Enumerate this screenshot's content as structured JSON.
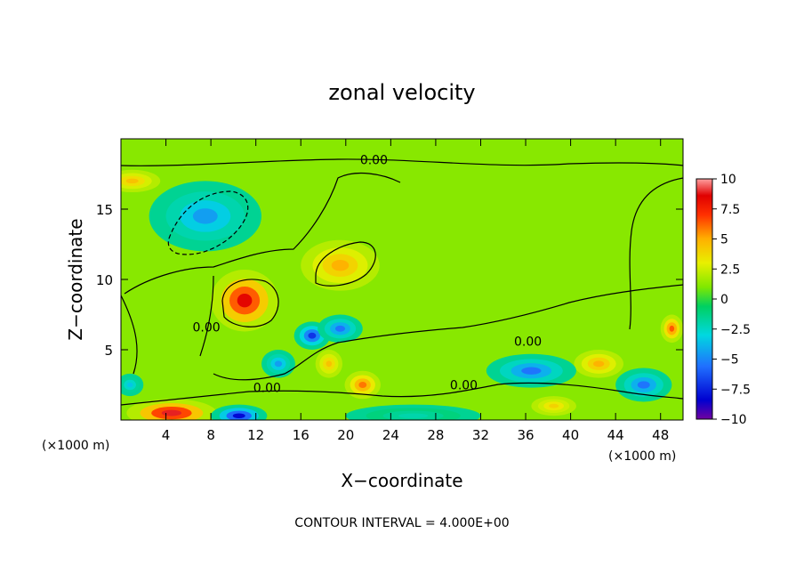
{
  "chart_data": {
    "type": "heatmap",
    "title": "zonal velocity",
    "xlabel": "X−coordinate",
    "ylabel": "Z−coordinate",
    "x_unit_left": "(×1000 m)",
    "x_unit_right": "(×1000 m)",
    "xlim": [
      0,
      50
    ],
    "ylim": [
      0,
      20
    ],
    "xticks": [
      "4",
      "8",
      "12",
      "16",
      "20",
      "24",
      "28",
      "32",
      "36",
      "40",
      "44",
      "48"
    ],
    "xtick_values": [
      4,
      8,
      12,
      16,
      20,
      24,
      28,
      32,
      36,
      40,
      44,
      48
    ],
    "yticks": [
      "5",
      "10",
      "15"
    ],
    "ytick_values": [
      5,
      10,
      15
    ],
    "colorbar": {
      "range": [
        -10,
        10
      ],
      "tick_labels": [
        "10",
        "7.5",
        "5",
        "2.5",
        "0",
        "−2.5",
        "−5",
        "−7.5",
        "−10"
      ],
      "tick_values": [
        10,
        7.5,
        5,
        2.5,
        0,
        -2.5,
        -5,
        -7.5,
        -10
      ]
    },
    "contour_interval_text": "CONTOUR INTERVAL =  4.000E+00",
    "contour_labels": [
      {
        "text": "0.00",
        "x": 22.5,
        "y": 18.5
      },
      {
        "text": "0.00",
        "x": 7.6,
        "y": 6.6
      },
      {
        "text": "0.00",
        "x": 13.0,
        "y": 2.3
      },
      {
        "text": "0.00",
        "x": 30.5,
        "y": 2.5
      },
      {
        "text": "0.00",
        "x": 36.2,
        "y": 5.6
      }
    ],
    "features": [
      {
        "kind": "max",
        "x": 11,
        "y": 8.5,
        "value": 8.5,
        "rx": 3.0,
        "ry": 2.2
      },
      {
        "kind": "max",
        "x": 19.5,
        "y": 11.0,
        "value": 5.0,
        "rx": 3.5,
        "ry": 1.8
      },
      {
        "kind": "max",
        "x": 4.5,
        "y": 0.5,
        "value": 9.0,
        "rx": 4.0,
        "ry": 1.0
      },
      {
        "kind": "max",
        "x": 1.0,
        "y": 17.0,
        "value": 4.5,
        "rx": 2.5,
        "ry": 0.8
      },
      {
        "kind": "max",
        "x": 21.5,
        "y": 2.5,
        "value": 6.0,
        "rx": 1.6,
        "ry": 1.0
      },
      {
        "kind": "max",
        "x": 18.5,
        "y": 4.0,
        "value": 4.5,
        "rx": 1.2,
        "ry": 1.0
      },
      {
        "kind": "max",
        "x": 42.5,
        "y": 4.0,
        "value": 5.0,
        "rx": 2.2,
        "ry": 1.0
      },
      {
        "kind": "max",
        "x": 49.0,
        "y": 6.5,
        "value": 6.5,
        "rx": 1.0,
        "ry": 1.0
      },
      {
        "kind": "max",
        "x": 38.5,
        "y": 1.0,
        "value": 4.0,
        "rx": 2.0,
        "ry": 0.7
      },
      {
        "kind": "min",
        "x": 7.5,
        "y": 14.5,
        "value": -5.0,
        "rx": 5.0,
        "ry": 2.5
      },
      {
        "kind": "min",
        "x": 17.0,
        "y": 6.0,
        "value": -7.5,
        "rx": 1.6,
        "ry": 1.0
      },
      {
        "kind": "min",
        "x": 19.5,
        "y": 6.5,
        "value": -6.0,
        "rx": 2.0,
        "ry": 1.0
      },
      {
        "kind": "min",
        "x": 14.0,
        "y": 4.0,
        "value": -5.0,
        "rx": 1.5,
        "ry": 1.0
      },
      {
        "kind": "min",
        "x": 36.5,
        "y": 3.5,
        "value": -6.0,
        "rx": 4.0,
        "ry": 1.2
      },
      {
        "kind": "min",
        "x": 46.5,
        "y": 2.5,
        "value": -6.0,
        "rx": 2.5,
        "ry": 1.2
      },
      {
        "kind": "min",
        "x": 10.5,
        "y": 0.3,
        "value": -8.5,
        "rx": 2.5,
        "ry": 0.8
      },
      {
        "kind": "min",
        "x": 0.8,
        "y": 2.5,
        "value": -4.0,
        "rx": 1.2,
        "ry": 0.8
      },
      {
        "kind": "min",
        "x": 26.0,
        "y": 0.3,
        "value": -2.5,
        "rx": 6.0,
        "ry": 0.8
      }
    ]
  }
}
